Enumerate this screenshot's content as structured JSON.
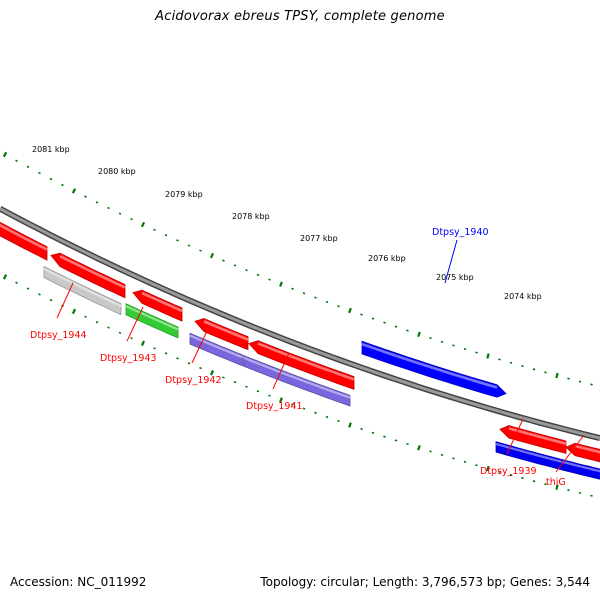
{
  "title": "Acidovorax ebreus TPSY, complete genome",
  "footer": {
    "accession": "Accession: NC_011992",
    "stats": "Topology: circular; Length: 3,796,573 bp; Genes: 3,544"
  },
  "scale_ticks": [
    {
      "label": "2081 kbp"
    },
    {
      "label": "2080 kbp"
    },
    {
      "label": "2079 kbp"
    },
    {
      "label": "2078 kbp"
    },
    {
      "label": "2077 kbp"
    },
    {
      "label": "2076 kbp"
    },
    {
      "label": "2075 kbp"
    },
    {
      "label": "2074 kbp"
    }
  ],
  "genes": [
    {
      "label": "Dtpsy_1940",
      "strand": "+",
      "color": "#0000ff"
    },
    {
      "label": "Dtpsy_1944",
      "strand": "-",
      "color": "#ff0000"
    },
    {
      "label": "Dtpsy_1943",
      "strand": "-",
      "color": "#ff0000"
    },
    {
      "label": "Dtpsy_1942",
      "strand": "-",
      "color": "#ff0000"
    },
    {
      "label": "Dtpsy_1941",
      "strand": "-",
      "color": "#ff0000"
    },
    {
      "label": "Dtpsy_1939",
      "strand": "-",
      "color": "#ff0000"
    },
    {
      "label": "thiG",
      "strand": "-",
      "color": "#ff0000"
    }
  ],
  "colors": {
    "backbone": "#808080",
    "scale": "#007700",
    "forward_gene": "#0000ff",
    "reverse_gene": "#ff0000",
    "cog_grey": "#c8c8c8",
    "cog_green": "#33cc33",
    "cog_purple": "#7766dd",
    "cog_blue": "#0000ee"
  }
}
